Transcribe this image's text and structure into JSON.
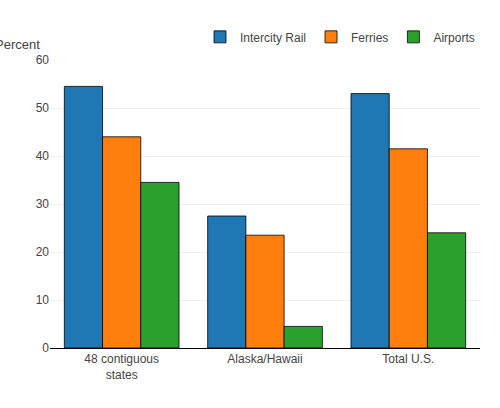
{
  "chart_data": {
    "type": "bar",
    "categories": [
      "48 contiguous\nstates",
      "Alaska/Hawaii",
      "Total U.S."
    ],
    "series": [
      {
        "name": "Intercity Rail",
        "values": [
          54.5,
          27.5,
          53.0
        ]
      },
      {
        "name": "Ferries",
        "values": [
          44.0,
          23.5,
          41.5
        ]
      },
      {
        "name": "Airports",
        "values": [
          34.5,
          4.5,
          24.0
        ]
      }
    ],
    "ylabel": "Percent",
    "ylim": [
      0,
      60
    ],
    "yticks": [
      0,
      10,
      20,
      30,
      40,
      50,
      60
    ],
    "grid": true,
    "legend": "upper right"
  }
}
